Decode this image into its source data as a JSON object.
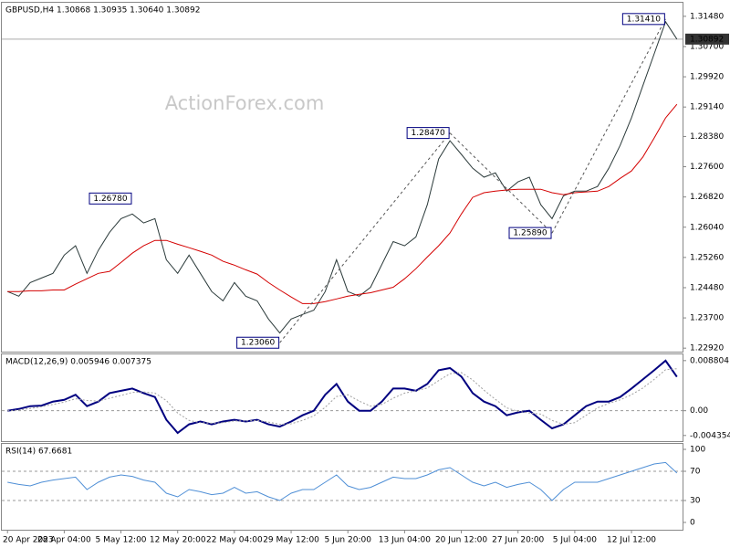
{
  "watermark": "ActionForex.com",
  "chart_data": [
    {
      "type": "line",
      "title": "GBPUSD,H4  1.30868 1.30935 1.30640 1.30892",
      "categories": [
        "20 Apr 2023",
        null,
        null,
        null,
        null,
        "28 Apr 04:00",
        null,
        null,
        null,
        null,
        "5 May 12:00",
        null,
        null,
        null,
        null,
        "12 May 20:00",
        null,
        null,
        null,
        null,
        "22 May 04:00",
        null,
        null,
        null,
        null,
        "29 May 12:00",
        null,
        null,
        null,
        null,
        "5 Jun 20:00",
        null,
        null,
        null,
        null,
        "13 Jun 04:00",
        null,
        null,
        null,
        null,
        "20 Jun 12:00",
        null,
        null,
        null,
        null,
        "27 Jun 20:00",
        null,
        null,
        null,
        null,
        "5 Jul 04:00",
        null,
        null,
        null,
        null,
        "12 Jul 12:00",
        null,
        null,
        null,
        null
      ],
      "series": [
        {
          "name": "GBPUSD",
          "color": "#2b3a3a",
          "values": [
            1.2438,
            1.2426,
            1.2461,
            1.2473,
            1.2485,
            1.2532,
            1.2556,
            1.2485,
            1.2544,
            1.2591,
            1.2626,
            1.2638,
            1.2615,
            1.2626,
            1.252,
            1.2485,
            1.2532,
            1.2485,
            1.2438,
            1.2414,
            1.2461,
            1.2426,
            1.2414,
            1.2367,
            1.2331,
            1.2367,
            1.2379,
            1.239,
            1.2438,
            1.252,
            1.2438,
            1.2426,
            1.2449,
            1.2508,
            1.2567,
            1.2556,
            1.2579,
            1.2662,
            1.278,
            1.2827,
            1.2792,
            1.2756,
            1.2733,
            1.2744,
            1.2697,
            1.2721,
            1.2733,
            1.2662,
            1.2626,
            1.2685,
            1.2697,
            1.2697,
            1.2709,
            1.2756,
            1.2815,
            1.2886,
            1.2969,
            1.3051,
            1.3134,
            1.30892
          ]
        },
        {
          "name": "MA",
          "color": "#d40000",
          "values": [
            1.2438,
            1.2438,
            1.244,
            1.244,
            1.2442,
            1.2442,
            1.2457,
            1.2471,
            1.2485,
            1.249,
            1.2513,
            1.2537,
            1.2556,
            1.257,
            1.257,
            1.256,
            1.2551,
            1.2542,
            1.2532,
            1.2516,
            1.2506,
            1.2494,
            1.2483,
            1.2461,
            1.2442,
            1.2424,
            1.2407,
            1.2407,
            1.2412,
            1.2419,
            1.2426,
            1.2431,
            1.2435,
            1.2442,
            1.2449,
            1.2471,
            1.2497,
            1.2527,
            1.2556,
            1.2589,
            1.2638,
            1.2681,
            1.2693,
            1.2697,
            1.27,
            1.2702,
            1.2702,
            1.2702,
            1.2693,
            1.2688,
            1.2693,
            1.2695,
            1.2697,
            1.2709,
            1.273,
            1.2749,
            1.2785,
            1.2834,
            1.2886,
            1.2921
          ]
        }
      ],
      "annotations": [
        {
          "label": "1.26780",
          "value": 1.2678,
          "index": 11
        },
        {
          "label": "1.23060",
          "value": 1.2306,
          "index": 24
        },
        {
          "label": "1.28470",
          "value": 1.2847,
          "index": 39
        },
        {
          "label": "1.25890",
          "value": 1.2589,
          "index": 48
        },
        {
          "label": "1.31410",
          "value": 1.3141,
          "index": 58
        }
      ],
      "current_price": {
        "value": 1.30892,
        "label": "1.30892"
      },
      "ylim": [
        1.2283,
        1.3183
      ],
      "yticks": [
        {
          "value": 1.3148,
          "label": "1.31480"
        },
        {
          "value": 1.307,
          "label": "1.30700"
        },
        {
          "value": 1.2992,
          "label": "1.29920"
        },
        {
          "value": 1.2914,
          "label": "1.29140"
        },
        {
          "value": 1.2838,
          "label": "1.28380"
        },
        {
          "value": 1.276,
          "label": "1.27600"
        },
        {
          "value": 1.2682,
          "label": "1.26820"
        },
        {
          "value": 1.2604,
          "label": "1.26040"
        },
        {
          "value": 1.2526,
          "label": "1.25260"
        },
        {
          "value": 1.2448,
          "label": "1.24480"
        },
        {
          "value": 1.237,
          "label": "1.23700"
        },
        {
          "value": 1.2292,
          "label": "1.22920"
        }
      ]
    },
    {
      "type": "line",
      "title": "MACD(12,26,9) 0.005946 0.007375",
      "series": [
        {
          "name": "MACD",
          "color": "#000080",
          "values": [
            0,
            0.0003,
            0.0008,
            0.0009,
            0.0016,
            0.0019,
            0.0028,
            0.0008,
            0.0016,
            0.0031,
            0.0035,
            0.0039,
            0.0031,
            0.0024,
            -0.0016,
            -0.0039,
            -0.0024,
            -0.0019,
            -0.0024,
            -0.0019,
            -0.0016,
            -0.0019,
            -0.0016,
            -0.0024,
            -0.0028,
            -0.0019,
            -0.0008,
            0,
            0.0028,
            0.0047,
            0.0016,
            0,
            0,
            0.0016,
            0.0039,
            0.0039,
            0.0035,
            0.0047,
            0.0071,
            0.0075,
            0.006,
            0.0031,
            0.0016,
            0.0008,
            -0.0008,
            -0.0003,
            0,
            -0.0016,
            -0.0031,
            -0.0024,
            -0.0008,
            0.0008,
            0.0016,
            0.0016,
            0.0024,
            0.0039,
            0.0055,
            0.0071,
            0.0088,
            0.005946
          ]
        },
        {
          "name": "Signal",
          "color": "#a0a0a0",
          "dash": true,
          "values": [
            0,
            0.0001,
            0.0004,
            0.0007,
            0.0011,
            0.0015,
            0.0021,
            0.0018,
            0.0017,
            0.0022,
            0.0027,
            0.0032,
            0.0033,
            0.0031,
            0.0018,
            -0.0004,
            -0.0017,
            -0.0021,
            -0.0022,
            -0.0021,
            -0.0018,
            -0.0018,
            -0.0017,
            -0.002,
            -0.0024,
            -0.0023,
            -0.0017,
            -0.0009,
            0.0006,
            0.0025,
            0.0028,
            0.0017,
            0.0008,
            0.0011,
            0.0022,
            0.0031,
            0.0035,
            0.004,
            0.0053,
            0.0065,
            0.0067,
            0.0054,
            0.0036,
            0.002,
            0.0005,
            -0.0001,
            -0.0004,
            -0.0006,
            -0.0017,
            -0.0024,
            -0.0021,
            -0.0008,
            0.0005,
            0.0013,
            0.0019,
            0.0028,
            0.004,
            0.0055,
            0.0072,
            0.007375
          ]
        }
      ],
      "levels": [
        0
      ],
      "ylim": [
        -0.00535,
        0.0099
      ],
      "yticks": [
        0.008804,
        {
          "value": 0,
          "label": "0.00"
        },
        -0.004354
      ]
    },
    {
      "type": "line",
      "title": "RSI(14) 67.6681",
      "series": [
        {
          "name": "RSI",
          "color": "#4f8fd6",
          "values": [
            55,
            52,
            50,
            55,
            58,
            60,
            62,
            45,
            55,
            62,
            65,
            63,
            58,
            55,
            40,
            35,
            45,
            42,
            38,
            40,
            48,
            40,
            42,
            35,
            30,
            40,
            45,
            45,
            55,
            65,
            50,
            45,
            48,
            55,
            62,
            60,
            60,
            65,
            72,
            75,
            65,
            55,
            50,
            55,
            48,
            52,
            55,
            45,
            30,
            45,
            55,
            55,
            55,
            60,
            65,
            70,
            75,
            80,
            82,
            67.6681
          ]
        }
      ],
      "levels": [
        30,
        70
      ],
      "ylim": [
        -10,
        107.5
      ],
      "yticks": [
        100,
        70,
        30,
        0
      ]
    }
  ]
}
